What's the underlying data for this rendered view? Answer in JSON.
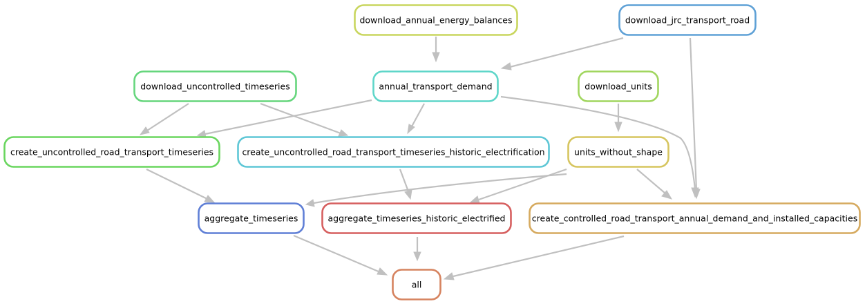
{
  "nodes": [
    {
      "id": "download_annual_energy_balances",
      "label": "download_annual_energy_balances",
      "color": "#c9d65f"
    },
    {
      "id": "download_jrc_transport_road",
      "label": "download_jrc_transport_road",
      "color": "#5fa1d6"
    },
    {
      "id": "download_uncontrolled_timeseries",
      "label": "download_uncontrolled_timeseries",
      "color": "#66d67d"
    },
    {
      "id": "annual_transport_demand",
      "label": "annual_transport_demand",
      "color": "#5fd6c9"
    },
    {
      "id": "download_units",
      "label": "download_units",
      "color": "#a1d65f"
    },
    {
      "id": "create_uncontrolled_road_transport_timeseries",
      "label": "create_uncontrolled_road_transport_timeseries",
      "color": "#6ad65f"
    },
    {
      "id": "create_uncontrolled_road_transport_timeseries_historic_electrification",
      "label": "create_uncontrolled_road_transport_timeseries_historic_electrification",
      "color": "#5fc7d6"
    },
    {
      "id": "units_without_shape",
      "label": "units_without_shape",
      "color": "#d6c55f"
    },
    {
      "id": "aggregate_timeseries",
      "label": "aggregate_timeseries",
      "color": "#5f7fd6"
    },
    {
      "id": "aggregate_timeseries_historic_electrified",
      "label": "aggregate_timeseries_historic_electrified",
      "color": "#d65f5f"
    },
    {
      "id": "create_controlled_road_transport_annual_demand_and_installed_capacities",
      "label": "create_controlled_road_transport_annual_demand_and_installed_capacities",
      "color": "#d6aa5f"
    },
    {
      "id": "all",
      "label": "all",
      "color": "#d6835f"
    }
  ],
  "edges": [
    {
      "from": "download_annual_energy_balances",
      "to": "annual_transport_demand"
    },
    {
      "from": "download_jrc_transport_road",
      "to": "annual_transport_demand"
    },
    {
      "from": "download_jrc_transport_road",
      "to": "create_controlled_road_transport_annual_demand_and_installed_capacities"
    },
    {
      "from": "download_uncontrolled_timeseries",
      "to": "create_uncontrolled_road_transport_timeseries"
    },
    {
      "from": "download_uncontrolled_timeseries",
      "to": "create_uncontrolled_road_transport_timeseries_historic_electrification"
    },
    {
      "from": "annual_transport_demand",
      "to": "create_uncontrolled_road_transport_timeseries"
    },
    {
      "from": "annual_transport_demand",
      "to": "create_uncontrolled_road_transport_timeseries_historic_electrification"
    },
    {
      "from": "annual_transport_demand",
      "to": "create_controlled_road_transport_annual_demand_and_installed_capacities"
    },
    {
      "from": "download_units",
      "to": "units_without_shape"
    },
    {
      "from": "create_uncontrolled_road_transport_timeseries",
      "to": "aggregate_timeseries"
    },
    {
      "from": "create_uncontrolled_road_transport_timeseries_historic_electrification",
      "to": "aggregate_timeseries_historic_electrified"
    },
    {
      "from": "units_without_shape",
      "to": "aggregate_timeseries"
    },
    {
      "from": "units_without_shape",
      "to": "aggregate_timeseries_historic_electrified"
    },
    {
      "from": "units_without_shape",
      "to": "create_controlled_road_transport_annual_demand_and_installed_capacities"
    },
    {
      "from": "aggregate_timeseries",
      "to": "all"
    },
    {
      "from": "aggregate_timeseries_historic_electrified",
      "to": "all"
    },
    {
      "from": "create_controlled_road_transport_annual_demand_and_installed_capacities",
      "to": "all"
    }
  ]
}
